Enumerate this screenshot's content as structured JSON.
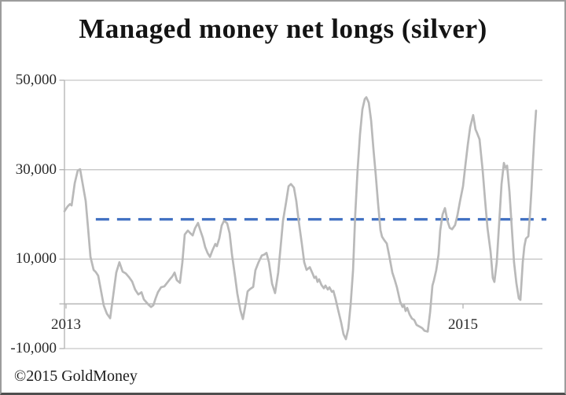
{
  "header": {
    "title": "Managed money net longs (silver)"
  },
  "footer": {
    "copyright": "©2015 GoldMoney"
  },
  "colors": {
    "background": "#ffffff",
    "data_line": "#b9b9b9",
    "gridline": "#c7c7c7",
    "axis": "#b2b2b2",
    "reference_line": "#3f6fc1",
    "label_text": "#2b2b2b",
    "border_top": "#9c9c9c",
    "border_bottom": "#4f4f4f"
  },
  "chart_data": {
    "type": "line",
    "title": "Managed money net longs (silver)",
    "xlabel": "",
    "ylabel": "",
    "xlim": [
      2012.99,
      2015.42
    ],
    "ylim": [
      -10000,
      50000
    ],
    "grid": "horizontal",
    "legend": "none",
    "yticks": [
      {
        "value": 50000,
        "label": "50,000"
      },
      {
        "value": 30000,
        "label": "30,000"
      },
      {
        "value": 10000,
        "label": "10,000"
      },
      {
        "value": -10000,
        "label": "-10,000"
      }
    ],
    "xticks": [
      {
        "value": 2013,
        "label": "2013"
      },
      {
        "value": 2015,
        "label": "2015"
      }
    ],
    "reference_line": {
      "value": 18900,
      "style": "dashed",
      "color": "#3f6fc1",
      "x_start": 2013.15,
      "x_end": 2015.42
    },
    "series": [
      {
        "name": "Managed money net longs (silver)",
        "color": "#b9b9b9",
        "points": [
          [
            2012.992,
            20700
          ],
          [
            2013.008,
            21800
          ],
          [
            2013.02,
            22300
          ],
          [
            2013.028,
            22000
          ],
          [
            2013.044,
            27000
          ],
          [
            2013.059,
            29800
          ],
          [
            2013.071,
            30100
          ],
          [
            2013.083,
            27000
          ],
          [
            2013.099,
            23000
          ],
          [
            2013.111,
            17000
          ],
          [
            2013.123,
            10500
          ],
          [
            2013.139,
            7600
          ],
          [
            2013.15,
            7100
          ],
          [
            2013.162,
            6300
          ],
          [
            2013.174,
            3500
          ],
          [
            2013.19,
            -400
          ],
          [
            2013.206,
            -2200
          ],
          [
            2013.222,
            -3200
          ],
          [
            2013.238,
            2000
          ],
          [
            2013.253,
            7000
          ],
          [
            2013.269,
            9300
          ],
          [
            2013.285,
            7200
          ],
          [
            2013.301,
            6800
          ],
          [
            2013.317,
            6000
          ],
          [
            2013.333,
            5000
          ],
          [
            2013.348,
            3200
          ],
          [
            2013.364,
            2100
          ],
          [
            2013.38,
            2600
          ],
          [
            2013.392,
            1000
          ],
          [
            2013.404,
            400
          ],
          [
            2013.416,
            -200
          ],
          [
            2013.428,
            -700
          ],
          [
            2013.44,
            -300
          ],
          [
            2013.451,
            1200
          ],
          [
            2013.463,
            2600
          ],
          [
            2013.479,
            3700
          ],
          [
            2013.495,
            3900
          ],
          [
            2013.511,
            4800
          ],
          [
            2013.523,
            5500
          ],
          [
            2013.535,
            6100
          ],
          [
            2013.547,
            7000
          ],
          [
            2013.558,
            5300
          ],
          [
            2013.574,
            4700
          ],
          [
            2013.586,
            9300
          ],
          [
            2013.598,
            15500
          ],
          [
            2013.614,
            16400
          ],
          [
            2013.626,
            15800
          ],
          [
            2013.638,
            15300
          ],
          [
            2013.65,
            16900
          ],
          [
            2013.665,
            18100
          ],
          [
            2013.677,
            16400
          ],
          [
            2013.689,
            14800
          ],
          [
            2013.701,
            12700
          ],
          [
            2013.713,
            11400
          ],
          [
            2013.725,
            10500
          ],
          [
            2013.737,
            11900
          ],
          [
            2013.752,
            13400
          ],
          [
            2013.76,
            12900
          ],
          [
            2013.772,
            14600
          ],
          [
            2013.784,
            17500
          ],
          [
            2013.796,
            18600
          ],
          [
            2013.812,
            18000
          ],
          [
            2013.824,
            15800
          ],
          [
            2013.836,
            11000
          ],
          [
            2013.851,
            6300
          ],
          [
            2013.863,
            2300
          ],
          [
            2013.879,
            -1500
          ],
          [
            2013.891,
            -3400
          ],
          [
            2013.903,
            -500
          ],
          [
            2013.915,
            2800
          ],
          [
            2013.927,
            3300
          ],
          [
            2013.943,
            3800
          ],
          [
            2013.954,
            7500
          ],
          [
            2013.97,
            9300
          ],
          [
            2013.986,
            10800
          ],
          [
            2013.998,
            11000
          ],
          [
            2014.01,
            11400
          ],
          [
            2014.022,
            9300
          ],
          [
            2014.038,
            4500
          ],
          [
            2014.053,
            2400
          ],
          [
            2014.069,
            7000
          ],
          [
            2014.081,
            12800
          ],
          [
            2014.093,
            18600
          ],
          [
            2014.109,
            22800
          ],
          [
            2014.121,
            26300
          ],
          [
            2014.133,
            26800
          ],
          [
            2014.148,
            26000
          ],
          [
            2014.16,
            23000
          ],
          [
            2014.172,
            18600
          ],
          [
            2014.188,
            13400
          ],
          [
            2014.2,
            9300
          ],
          [
            2014.212,
            7600
          ],
          [
            2014.228,
            8200
          ],
          [
            2014.24,
            7000
          ],
          [
            2014.251,
            5800
          ],
          [
            2014.259,
            6100
          ],
          [
            2014.267,
            4900
          ],
          [
            2014.275,
            5500
          ],
          [
            2014.287,
            4200
          ],
          [
            2014.299,
            3500
          ],
          [
            2014.307,
            4100
          ],
          [
            2014.319,
            3200
          ],
          [
            2014.327,
            3700
          ],
          [
            2014.339,
            2700
          ],
          [
            2014.347,
            2900
          ],
          [
            2014.358,
            1100
          ],
          [
            2014.37,
            -1200
          ],
          [
            2014.386,
            -4200
          ],
          [
            2014.398,
            -6800
          ],
          [
            2014.41,
            -7900
          ],
          [
            2014.422,
            -5500
          ],
          [
            2014.434,
            0
          ],
          [
            2014.446,
            7500
          ],
          [
            2014.457,
            20000
          ],
          [
            2014.469,
            30000
          ],
          [
            2014.481,
            38000
          ],
          [
            2014.493,
            43500
          ],
          [
            2014.505,
            45800
          ],
          [
            2014.513,
            46200
          ],
          [
            2014.525,
            45000
          ],
          [
            2014.537,
            41000
          ],
          [
            2014.549,
            34500
          ],
          [
            2014.56,
            29000
          ],
          [
            2014.572,
            22500
          ],
          [
            2014.584,
            16500
          ],
          [
            2014.592,
            15000
          ],
          [
            2014.604,
            14200
          ],
          [
            2014.616,
            13500
          ],
          [
            2014.628,
            10800
          ],
          [
            2014.644,
            7000
          ],
          [
            2014.655,
            5500
          ],
          [
            2014.667,
            3700
          ],
          [
            2014.683,
            500
          ],
          [
            2014.695,
            -700
          ],
          [
            2014.703,
            -300
          ],
          [
            2014.711,
            -1600
          ],
          [
            2014.719,
            -900
          ],
          [
            2014.731,
            -2400
          ],
          [
            2014.743,
            -3300
          ],
          [
            2014.754,
            -3600
          ],
          [
            2014.766,
            -4700
          ],
          [
            2014.782,
            -5100
          ],
          [
            2014.794,
            -5400
          ],
          [
            2014.806,
            -6000
          ],
          [
            2014.822,
            -6200
          ],
          [
            2014.834,
            -1900
          ],
          [
            2014.846,
            4100
          ],
          [
            2014.853,
            5200
          ],
          [
            2014.865,
            7500
          ],
          [
            2014.877,
            11000
          ],
          [
            2014.885,
            16400
          ],
          [
            2014.897,
            20000
          ],
          [
            2014.909,
            21400
          ],
          [
            2014.921,
            18600
          ],
          [
            2014.933,
            17000
          ],
          [
            2014.945,
            16700
          ],
          [
            2014.96,
            17600
          ],
          [
            2014.972,
            19800
          ],
          [
            2014.984,
            22800
          ],
          [
            2015.0,
            26300
          ],
          [
            2015.012,
            31000
          ],
          [
            2015.024,
            35600
          ],
          [
            2015.036,
            39500
          ],
          [
            2015.051,
            42200
          ],
          [
            2015.063,
            39000
          ],
          [
            2015.071,
            38200
          ],
          [
            2015.083,
            36800
          ],
          [
            2015.099,
            29800
          ],
          [
            2015.111,
            23300
          ],
          [
            2015.123,
            17000
          ],
          [
            2015.139,
            11600
          ],
          [
            2015.15,
            5800
          ],
          [
            2015.158,
            4900
          ],
          [
            2015.17,
            9300
          ],
          [
            2015.182,
            18100
          ],
          [
            2015.194,
            26800
          ],
          [
            2015.206,
            31500
          ],
          [
            2015.214,
            30400
          ],
          [
            2015.222,
            30900
          ],
          [
            2015.234,
            25000
          ],
          [
            2015.246,
            16900
          ],
          [
            2015.257,
            9300
          ],
          [
            2015.269,
            4600
          ],
          [
            2015.281,
            1200
          ],
          [
            2015.289,
            900
          ],
          [
            2015.301,
            9300
          ],
          [
            2015.309,
            12800
          ],
          [
            2015.317,
            14600
          ],
          [
            2015.329,
            15100
          ],
          [
            2015.337,
            19800
          ],
          [
            2015.345,
            25600
          ],
          [
            2015.352,
            31600
          ],
          [
            2015.36,
            38000
          ],
          [
            2015.368,
            43200
          ]
        ]
      }
    ]
  }
}
